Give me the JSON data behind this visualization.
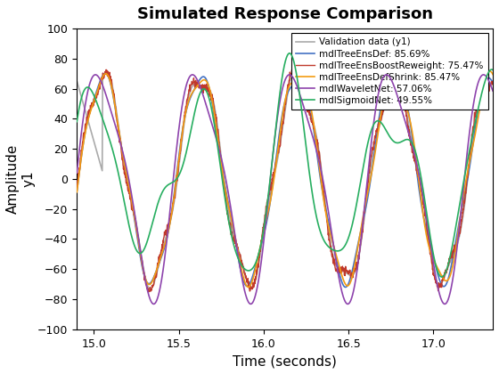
{
  "title": "Simulated Response Comparison",
  "xlabel": "Time (seconds)",
  "ylabel": "Amplitude\ny1",
  "xlim": [
    14.9,
    17.35
  ],
  "ylim": [
    -100,
    100
  ],
  "yticks": [
    -100,
    -80,
    -60,
    -40,
    -20,
    0,
    20,
    40,
    60,
    80,
    100
  ],
  "xticks": [
    15.0,
    15.5,
    16.0,
    16.5,
    17.0
  ],
  "legend": [
    {
      "label": "Validation data (y1)",
      "color": "#aaaaaa",
      "lw": 1.2,
      "zorder": 2
    },
    {
      "label": "mdlTreeEnsDef: 85.69%",
      "color": "#4472c4",
      "lw": 1.2,
      "zorder": 3
    },
    {
      "label": "mdlTreeEnsBoostReweight: 75.47%",
      "color": "#c0392b",
      "lw": 1.0,
      "zorder": 4
    },
    {
      "label": "mdlTreeEnsDefShrink: 85.47%",
      "color": "#f39c12",
      "lw": 1.2,
      "zorder": 5
    },
    {
      "label": "mdlWaveletNet: 57.06%",
      "color": "#8e44ad",
      "lw": 1.2,
      "zorder": 6
    },
    {
      "label": "mdlSigmoidNet: 49.55%",
      "color": "#27ae60",
      "lw": 1.2,
      "zorder": 7
    }
  ],
  "background_color": "#ffffff",
  "title_fontsize": 13,
  "label_fontsize": 11
}
